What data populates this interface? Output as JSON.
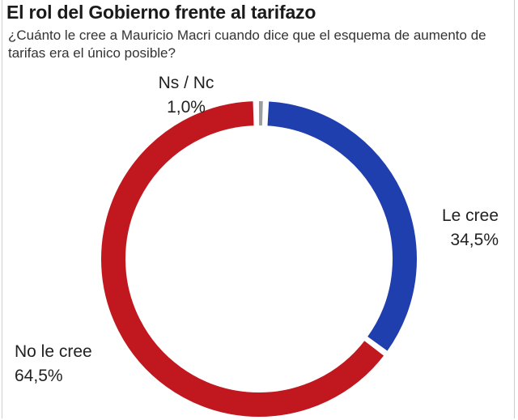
{
  "chart_data": {
    "type": "pie",
    "title": "El rol del Gobierno frente al tarifazo",
    "subtitle": "¿Cuánto le cree a Mauricio Macri cuando dice que el esquema de aumento de tarifas era el único posible?",
    "slices": [
      {
        "label": "Le cree",
        "value": 34.5,
        "display": "34,5%",
        "color": "#1f3fae"
      },
      {
        "label": "No le cree",
        "value": 64.5,
        "display": "64,5%",
        "color": "#c1181f"
      },
      {
        "label": "Ns / Nc",
        "value": 1.0,
        "display": "1,0%",
        "color": "#9e9e9e"
      }
    ],
    "donut": true
  }
}
